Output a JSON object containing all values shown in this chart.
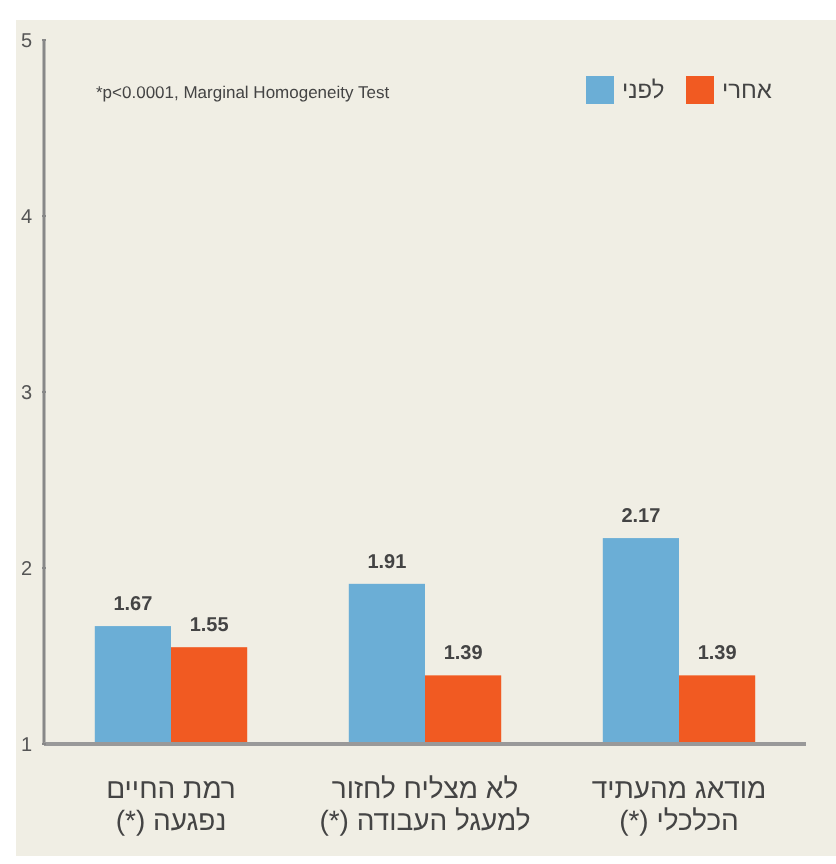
{
  "chart_data": {
    "type": "bar",
    "categories": [
      "רמת החיים נפגעה (*)",
      "לא מצליח לחזור למעגל העבודה (*)",
      "מודאג מהעתיד הכלכלי (*)"
    ],
    "series": [
      {
        "name": "לפני",
        "color": "#6baed6",
        "values": [
          1.67,
          1.91,
          2.17
        ]
      },
      {
        "name": "אחרי",
        "color": "#f15a22",
        "values": [
          1.55,
          1.39,
          1.39
        ]
      }
    ],
    "ylim": [
      1,
      5
    ],
    "yticks": [
      1,
      2,
      3,
      4,
      5
    ],
    "data_labels": true,
    "legend": "top right",
    "grid": false,
    "annotations": [
      "*p<0.0001, Marginal Homogeneity Test"
    ]
  }
}
